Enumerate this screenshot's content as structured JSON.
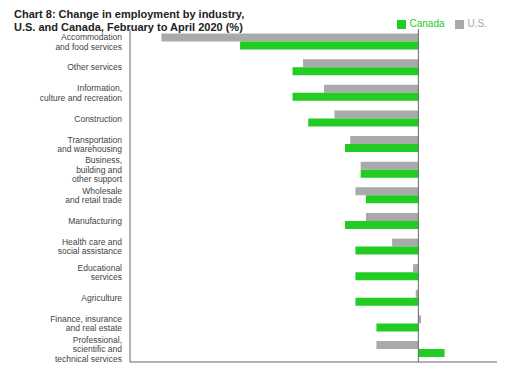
{
  "chart_data": {
    "type": "bar",
    "orientation": "horizontal",
    "title": "Chart 8: Change in employment by industry,\nU.S. and Canada, February to April 2020 (%)",
    "categories": [
      "Accommodation\nand food services",
      "Other services",
      "Information,\nculture and recreation",
      "Construction",
      "Transportation\nand warehousing",
      "Business,\nbuilding and\nother support",
      "Wholesale\nand retail trade",
      "Manufacturing",
      "Health care and\nsocial assistance",
      "Educational\nservices",
      "Agriculture",
      "Finance, insurance\nand real estate",
      "Professional,\nscientific and\ntechnical services"
    ],
    "series": [
      {
        "name": "U.S.",
        "color": "#aaaaaa",
        "values": [
          -49.0,
          -22.0,
          -18.0,
          -16.0,
          -13.0,
          -11.0,
          -12.0,
          -10.0,
          -5.0,
          -1.0,
          -0.5,
          0.5,
          -8.0
        ]
      },
      {
        "name": "Canada",
        "color": "#22cc22",
        "values": [
          -34.0,
          -24.0,
          -24.0,
          -21.0,
          -14.0,
          -11.0,
          -10.0,
          -14.0,
          -12.0,
          -12.0,
          -12.0,
          -8.0,
          5.0
        ]
      }
    ],
    "xlim": [
      -55,
      15
    ],
    "grid": false,
    "legend": "upper right",
    "tick_labels": "y"
  }
}
